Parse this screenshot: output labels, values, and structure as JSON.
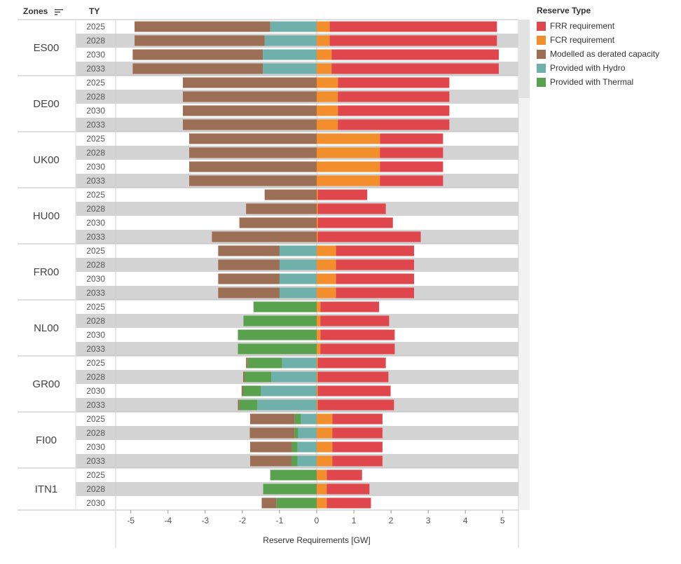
{
  "headers": {
    "zones": "Zones",
    "ty": "TY"
  },
  "legend": {
    "title": "Reserve Type",
    "items": [
      {
        "key": "frr",
        "label": "FRR requirement",
        "color": "#e0474c"
      },
      {
        "key": "fcr",
        "label": "FCR requirement",
        "color": "#f28e2b"
      },
      {
        "key": "derated",
        "label": "Modelled as derated capacity",
        "color": "#9c6f55"
      },
      {
        "key": "hydro",
        "label": "Provided with Hydro",
        "color": "#6fb0aa"
      },
      {
        "key": "thermal",
        "label": "Provided with Thermal",
        "color": "#59a14f"
      }
    ]
  },
  "chart_data": {
    "type": "bar",
    "orientation": "horizontal",
    "stacked": true,
    "xlabel": "Reserve Requirements [GW]",
    "xlim": [
      -5.5,
      5.5
    ],
    "xticks": [
      -5,
      -4,
      -3,
      -2,
      -1,
      0,
      1,
      2,
      3,
      4,
      5
    ],
    "negative_stack_order": [
      "hydro",
      "thermal",
      "derated"
    ],
    "positive_stack_order": [
      "fcr",
      "frr"
    ],
    "zones": [
      {
        "zone": "ES00",
        "years": [
          {
            "ty": "2025",
            "derated": 3.65,
            "hydro": 1.25,
            "thermal": 0,
            "fcr": 0.35,
            "frr": 4.5
          },
          {
            "ty": "2028",
            "derated": 3.5,
            "hydro": 1.4,
            "thermal": 0,
            "fcr": 0.35,
            "frr": 4.5
          },
          {
            "ty": "2030",
            "derated": 3.5,
            "hydro": 1.45,
            "thermal": 0,
            "fcr": 0.4,
            "frr": 4.5
          },
          {
            "ty": "2033",
            "derated": 3.5,
            "hydro": 1.45,
            "thermal": 0,
            "fcr": 0.4,
            "frr": 4.5
          }
        ]
      },
      {
        "zone": "DE00",
        "years": [
          {
            "ty": "2025",
            "derated": 3.6,
            "hydro": 0,
            "thermal": 0,
            "fcr": 0.57,
            "frr": 3.0
          },
          {
            "ty": "2028",
            "derated": 3.6,
            "hydro": 0,
            "thermal": 0,
            "fcr": 0.57,
            "frr": 3.0
          },
          {
            "ty": "2030",
            "derated": 3.6,
            "hydro": 0,
            "thermal": 0,
            "fcr": 0.57,
            "frr": 3.0
          },
          {
            "ty": "2033",
            "derated": 3.6,
            "hydro": 0,
            "thermal": 0,
            "fcr": 0.57,
            "frr": 3.0
          }
        ]
      },
      {
        "zone": "UK00",
        "years": [
          {
            "ty": "2025",
            "derated": 3.43,
            "hydro": 0,
            "thermal": 0,
            "fcr": 1.7,
            "frr": 1.7
          },
          {
            "ty": "2028",
            "derated": 3.43,
            "hydro": 0,
            "thermal": 0,
            "fcr": 1.7,
            "frr": 1.7
          },
          {
            "ty": "2030",
            "derated": 3.43,
            "hydro": 0,
            "thermal": 0,
            "fcr": 1.7,
            "frr": 1.7
          },
          {
            "ty": "2033",
            "derated": 3.43,
            "hydro": 0,
            "thermal": 0,
            "fcr": 1.7,
            "frr": 1.7
          }
        ]
      },
      {
        "zone": "HU00",
        "years": [
          {
            "ty": "2025",
            "derated": 1.4,
            "hydro": 0,
            "thermal": 0,
            "fcr": 0.03,
            "frr": 1.33
          },
          {
            "ty": "2028",
            "derated": 1.9,
            "hydro": 0,
            "thermal": 0,
            "fcr": 0.03,
            "frr": 1.83
          },
          {
            "ty": "2030",
            "derated": 2.08,
            "hydro": 0,
            "thermal": 0,
            "fcr": 0.03,
            "frr": 2.02
          },
          {
            "ty": "2033",
            "derated": 2.82,
            "hydro": 0,
            "thermal": 0,
            "fcr": 0.03,
            "frr": 2.77
          }
        ]
      },
      {
        "zone": "FR00",
        "years": [
          {
            "ty": "2025",
            "derated": 1.65,
            "hydro": 1.0,
            "thermal": 0,
            "fcr": 0.52,
            "frr": 2.1
          },
          {
            "ty": "2028",
            "derated": 1.65,
            "hydro": 1.0,
            "thermal": 0,
            "fcr": 0.52,
            "frr": 2.1
          },
          {
            "ty": "2030",
            "derated": 1.65,
            "hydro": 1.0,
            "thermal": 0,
            "fcr": 0.52,
            "frr": 2.1
          },
          {
            "ty": "2033",
            "derated": 1.65,
            "hydro": 1.0,
            "thermal": 0,
            "fcr": 0.52,
            "frr": 2.1
          }
        ]
      },
      {
        "zone": "NL00",
        "years": [
          {
            "ty": "2025",
            "derated": 0,
            "hydro": 0,
            "thermal": 1.7,
            "fcr": 0.1,
            "frr": 1.58
          },
          {
            "ty": "2028",
            "derated": 0,
            "hydro": 0,
            "thermal": 1.97,
            "fcr": 0.1,
            "frr": 1.85
          },
          {
            "ty": "2030",
            "derated": 0,
            "hydro": 0,
            "thermal": 2.12,
            "fcr": 0.1,
            "frr": 2.0
          },
          {
            "ty": "2033",
            "derated": 0,
            "hydro": 0,
            "thermal": 2.12,
            "fcr": 0.1,
            "frr": 2.0
          }
        ]
      },
      {
        "zone": "GR00",
        "years": [
          {
            "ty": "2025",
            "derated": 0.04,
            "hydro": 0.93,
            "thermal": 0.93,
            "fcr": 0.03,
            "frr": 1.83
          },
          {
            "ty": "2028",
            "derated": 0.04,
            "hydro": 1.22,
            "thermal": 0.72,
            "fcr": 0.03,
            "frr": 1.9
          },
          {
            "ty": "2030",
            "derated": 0.04,
            "hydro": 1.5,
            "thermal": 0.48,
            "fcr": 0.03,
            "frr": 1.96
          },
          {
            "ty": "2033",
            "derated": 0.04,
            "hydro": 1.6,
            "thermal": 0.48,
            "fcr": 0.03,
            "frr": 2.05
          }
        ]
      },
      {
        "zone": "FI00",
        "years": [
          {
            "ty": "2025",
            "derated": 1.2,
            "hydro": 0.42,
            "thermal": 0.17,
            "fcr": 0.42,
            "frr": 1.35
          },
          {
            "ty": "2028",
            "derated": 1.2,
            "hydro": 0.5,
            "thermal": 0.1,
            "fcr": 0.42,
            "frr": 1.35
          },
          {
            "ty": "2030",
            "derated": 1.12,
            "hydro": 0.52,
            "thermal": 0.15,
            "fcr": 0.42,
            "frr": 1.35
          },
          {
            "ty": "2033",
            "derated": 1.12,
            "hydro": 0.52,
            "thermal": 0.15,
            "fcr": 0.42,
            "frr": 1.35
          }
        ]
      },
      {
        "zone": "ITN1",
        "years": [
          {
            "ty": "2025",
            "derated": 0,
            "hydro": 0,
            "thermal": 1.25,
            "fcr": 0.27,
            "frr": 0.95
          },
          {
            "ty": "2028",
            "derated": 0,
            "hydro": 0,
            "thermal": 1.44,
            "fcr": 0.27,
            "frr": 1.15
          },
          {
            "ty": "2030",
            "derated": 0.4,
            "hydro": 0,
            "thermal": 1.08,
            "fcr": 0.27,
            "frr": 1.19
          }
        ]
      }
    ]
  }
}
